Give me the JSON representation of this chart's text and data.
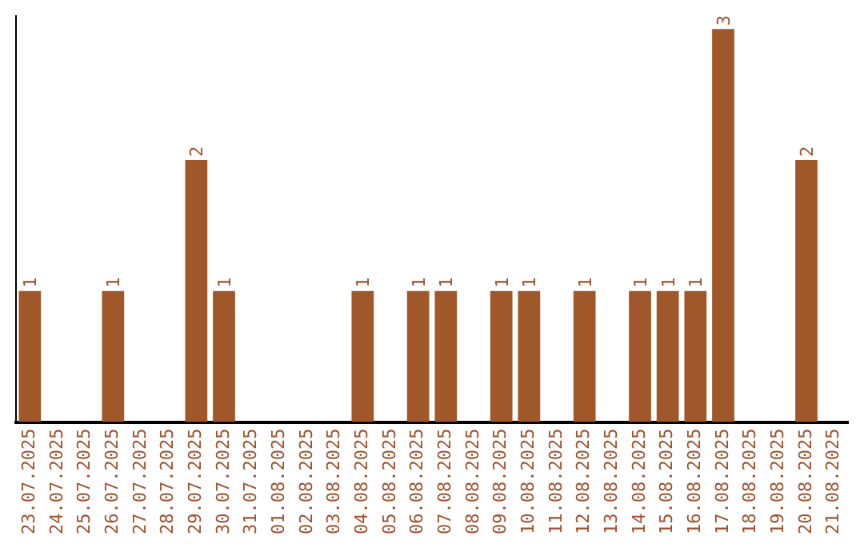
{
  "chart_data": {
    "type": "bar",
    "categories": [
      "23.07.2025",
      "24.07.2025",
      "25.07.2025",
      "26.07.2025",
      "27.07.2025",
      "28.07.2025",
      "29.07.2025",
      "30.07.2025",
      "31.07.2025",
      "01.08.2025",
      "02.08.2025",
      "03.08.2025",
      "04.08.2025",
      "05.08.2025",
      "06.08.2025",
      "07.08.2025",
      "08.08.2025",
      "09.08.2025",
      "10.08.2025",
      "11.08.2025",
      "12.08.2025",
      "13.08.2025",
      "14.08.2025",
      "15.08.2025",
      "16.08.2025",
      "17.08.2025",
      "18.08.2025",
      "19.08.2025",
      "20.08.2025",
      "21.08.2025"
    ],
    "values": [
      1,
      0,
      0,
      1,
      0,
      0,
      2,
      1,
      0,
      0,
      0,
      0,
      1,
      0,
      1,
      1,
      0,
      1,
      1,
      0,
      1,
      0,
      1,
      1,
      1,
      3,
      0,
      0,
      2,
      0
    ],
    "value_labels": [
      "1",
      null,
      null,
      "1",
      null,
      null,
      "2",
      "1",
      null,
      null,
      null,
      null,
      "1",
      null,
      "1",
      "1",
      null,
      "1",
      "1",
      null,
      "1",
      null,
      "1",
      "1",
      "1",
      "3",
      null,
      null,
      "2",
      null
    ],
    "color": "#a0582a",
    "ylim": [
      0,
      3.1
    ],
    "tick_labels": "x",
    "grid": false,
    "legend": false
  }
}
